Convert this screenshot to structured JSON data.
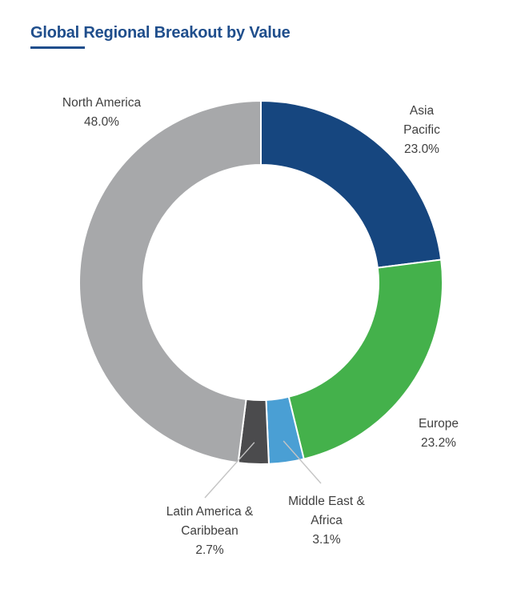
{
  "title": "Global Regional Breakout by Value",
  "chart_data": {
    "type": "pie",
    "title": "Global Regional Breakout by Value",
    "donut": true,
    "categories": [
      "Asia Pacific",
      "Europe",
      "Middle East & Africa",
      "Latin America & Caribbean",
      "North America"
    ],
    "values": [
      23.0,
      23.2,
      3.1,
      2.7,
      48.0
    ],
    "colors": [
      "#16467f",
      "#44b14b",
      "#4a9fd4",
      "#4b4b4d",
      "#a7a8aa"
    ],
    "labels": [
      {
        "lines": [
          "Asia",
          "Pacific",
          "23.0%"
        ]
      },
      {
        "lines": [
          "Europe",
          "23.2%"
        ]
      },
      {
        "lines": [
          "Middle East &",
          "Africa",
          "3.1%"
        ]
      },
      {
        "lines": [
          "Latin America &",
          "Caribbean",
          "2.7%"
        ]
      },
      {
        "lines": [
          "North America",
          "48.0%"
        ]
      }
    ]
  }
}
